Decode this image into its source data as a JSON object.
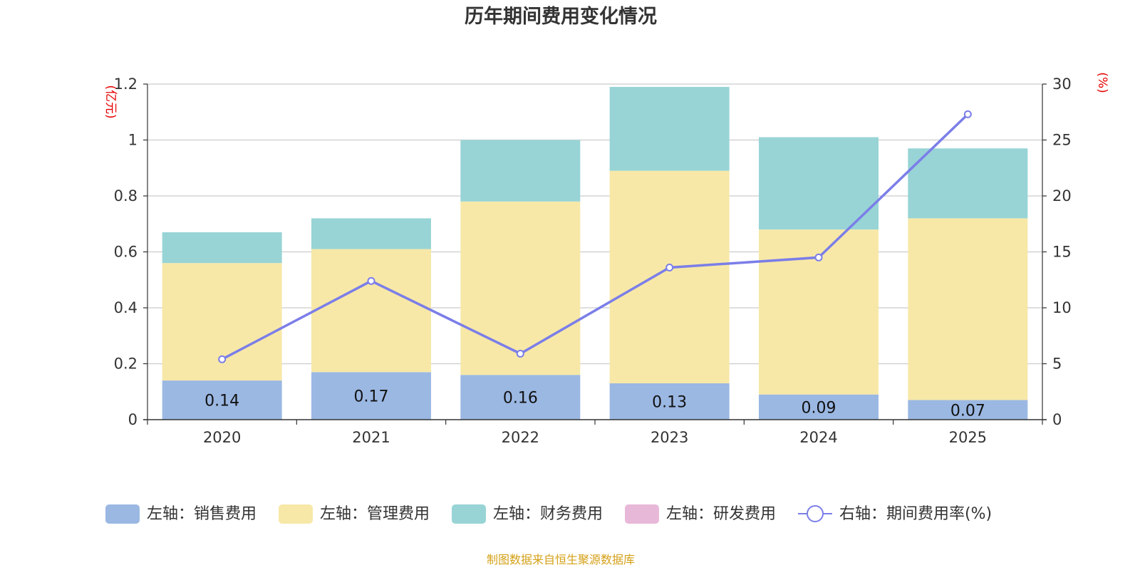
{
  "chart_data": {
    "type": "bar",
    "title": "历年期间费用变化情况",
    "categories": [
      "2020",
      "2021",
      "2022",
      "2023",
      "2024",
      "2025"
    ],
    "series": [
      {
        "name": "左轴：销售费用",
        "axis": "left",
        "color": "#9bb8e3",
        "values": [
          0.14,
          0.17,
          0.16,
          0.13,
          0.09,
          0.07
        ],
        "labels": [
          "0.14",
          "0.17",
          "0.16",
          "0.13",
          "0.09",
          "0.07"
        ]
      },
      {
        "name": "左轴：管理费用",
        "axis": "left",
        "color": "#f7e8a8",
        "values": [
          0.42,
          0.44,
          0.62,
          0.76,
          0.59,
          0.65
        ]
      },
      {
        "name": "左轴：财务费用",
        "axis": "left",
        "color": "#98d4d6",
        "values": [
          0.11,
          0.11,
          0.22,
          0.3,
          0.33,
          0.25
        ]
      },
      {
        "name": "左轴：研发费用",
        "axis": "left",
        "color": "#e8b8d8",
        "values": [
          0,
          0,
          0,
          0,
          0,
          0
        ]
      }
    ],
    "line_series": {
      "name": "右轴：期间费用率(%)",
      "axis": "right",
      "color": "#7b7ee8",
      "values": [
        5.4,
        12.4,
        5.9,
        13.6,
        14.5,
        27.3
      ]
    },
    "left_axis": {
      "unit": "(亿元)",
      "ylim": [
        0,
        1.2
      ],
      "ticks": [
        0,
        0.2,
        0.4,
        0.6,
        0.8,
        1,
        1.2
      ],
      "tick_labels": [
        "0",
        "0.2",
        "0.4",
        "0.6",
        "0.8",
        "1",
        "1.2"
      ]
    },
    "right_axis": {
      "unit": "(%)",
      "ylim": [
        0,
        30
      ],
      "ticks": [
        0,
        5,
        10,
        15,
        20,
        25,
        30
      ],
      "tick_labels": [
        "0",
        "5",
        "10",
        "15",
        "20",
        "25",
        "30"
      ]
    },
    "grid": true,
    "legend_position": "bottom"
  },
  "footer": {
    "source": "制图数据来自恒生聚源数据库"
  }
}
